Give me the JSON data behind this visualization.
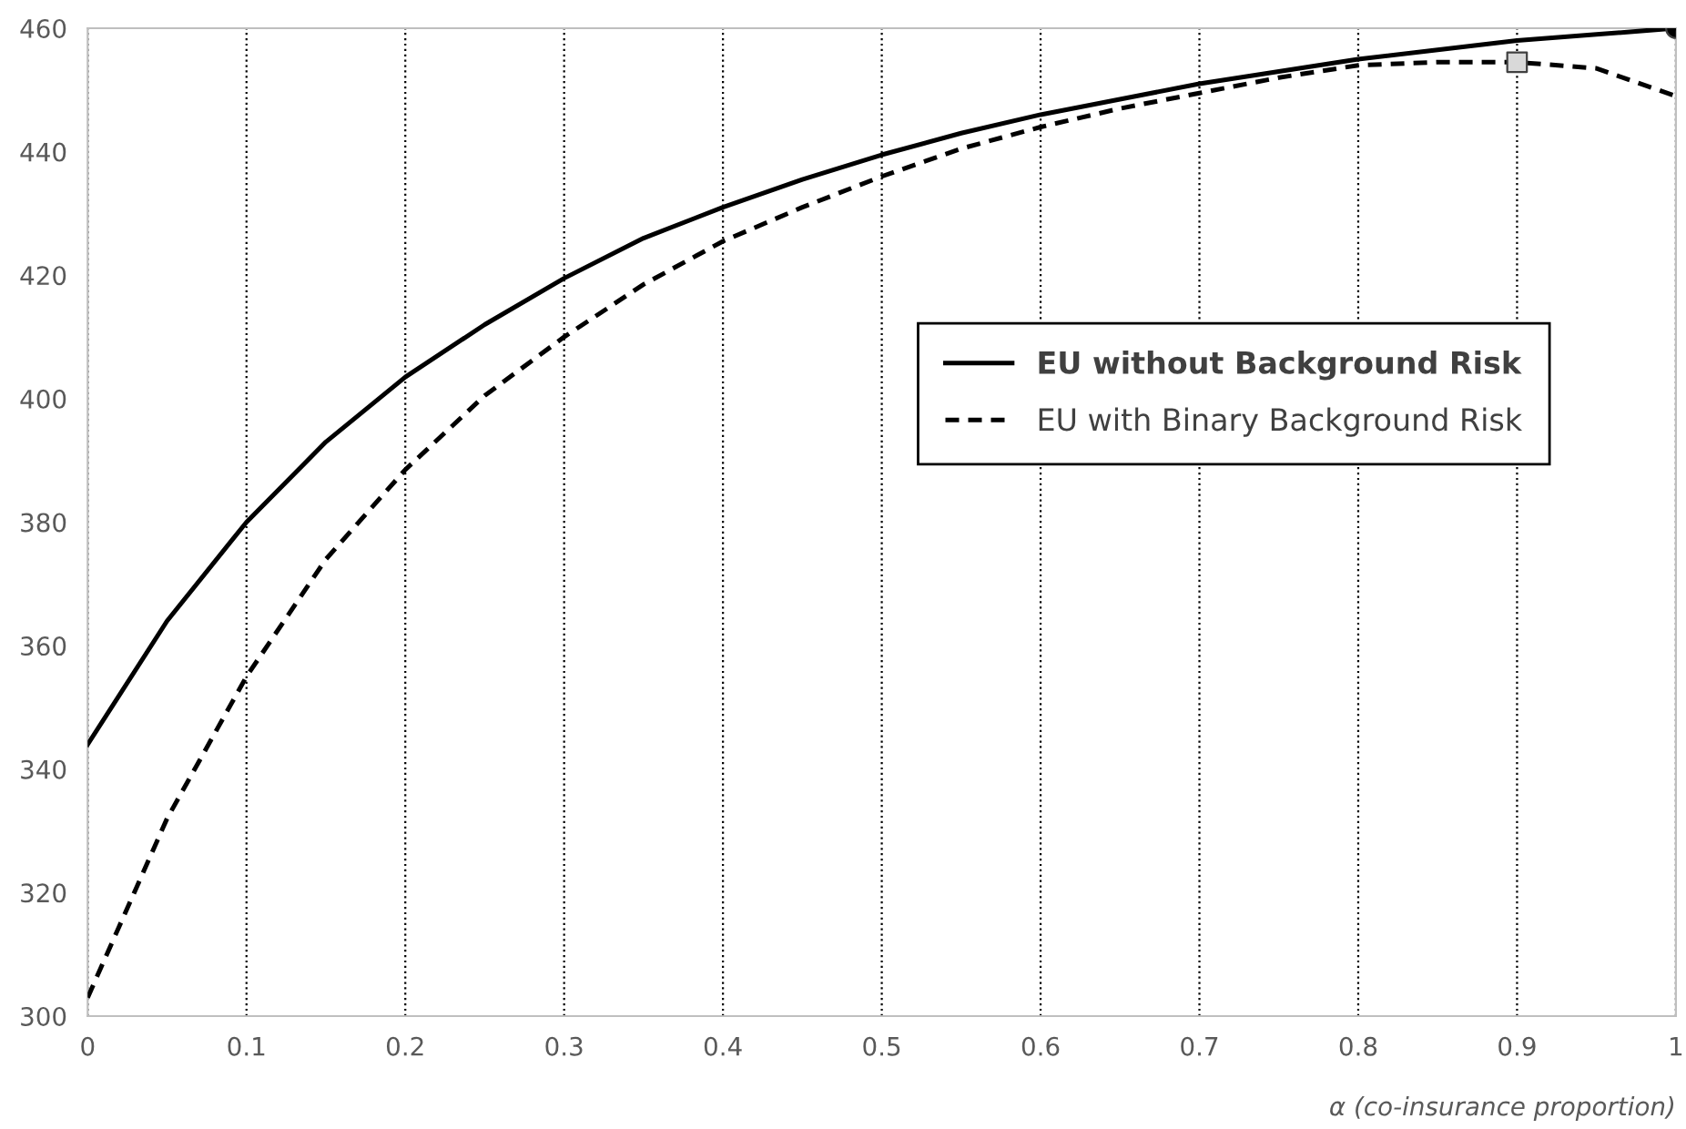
{
  "chart_data": {
    "type": "line",
    "xlabel": "α (co-insurance proportion)",
    "xlim": [
      0,
      1
    ],
    "xticks": [
      0,
      0.1,
      0.2,
      0.3,
      0.4,
      0.5,
      0.6,
      0.7,
      0.8,
      0.9,
      1
    ],
    "ylim": [
      300,
      460
    ],
    "yticks": [
      300,
      320,
      340,
      360,
      380,
      400,
      420,
      440,
      460
    ],
    "grid": "x",
    "legend": "right",
    "series": [
      {
        "name": "EU without Background Risk",
        "color": "#000000",
        "line_style": "solid",
        "x": [
          0,
          0.05,
          0.1,
          0.15,
          0.2,
          0.25,
          0.3,
          0.35,
          0.4,
          0.45,
          0.5,
          0.55,
          0.6,
          0.65,
          0.7,
          0.75,
          0.8,
          0.85,
          0.9,
          0.95,
          1
        ],
        "values": [
          344,
          364,
          380,
          393,
          403.5,
          412,
          419.5,
          426,
          431,
          435.5,
          439.5,
          443,
          446,
          448.5,
          451,
          453,
          455,
          456.5,
          458,
          459,
          460
        ]
      },
      {
        "name": "EU with Binary Background Risk",
        "color": "#000000",
        "line_style": "dashed",
        "x": [
          0,
          0.05,
          0.1,
          0.15,
          0.2,
          0.25,
          0.3,
          0.35,
          0.4,
          0.45,
          0.5,
          0.55,
          0.6,
          0.65,
          0.7,
          0.75,
          0.8,
          0.85,
          0.9,
          0.95,
          1
        ],
        "values": [
          303,
          332,
          355,
          374,
          388.5,
          400.5,
          410,
          418.5,
          425.5,
          431,
          436,
          440.5,
          444,
          447,
          449.5,
          452,
          454,
          454.5,
          454.5,
          453.5,
          449
        ]
      },
      {
        "type": "scatter",
        "marker": "circle",
        "color": "#000000",
        "x": [
          1
        ],
        "values": [
          460
        ]
      },
      {
        "type": "scatter",
        "marker": "square",
        "color": "#d9d9d9",
        "x": [
          0.9
        ],
        "values": [
          454.5
        ]
      }
    ]
  }
}
